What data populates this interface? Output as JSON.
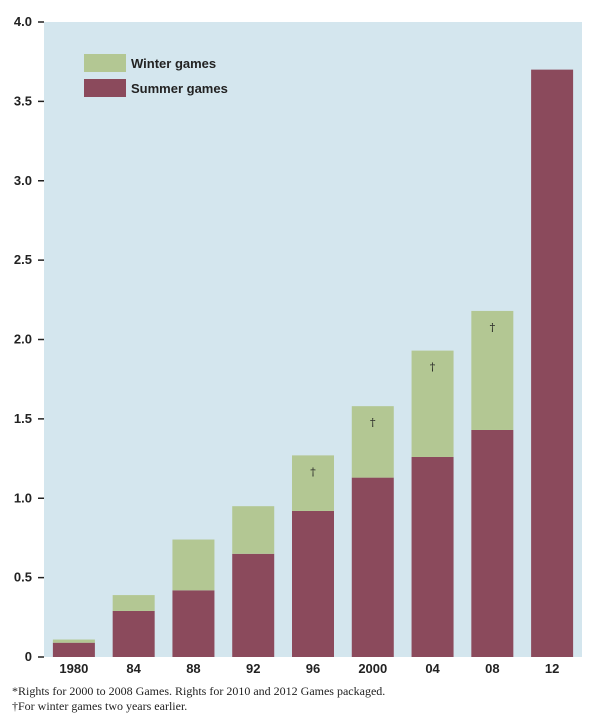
{
  "chart_data": {
    "type": "bar",
    "stacked": true,
    "categories": [
      "1980",
      "84",
      "88",
      "92",
      "96",
      "2000",
      "04",
      "08",
      "12"
    ],
    "series": [
      {
        "name": "Summer games",
        "color": "#8b4a5c",
        "values": [
          0.09,
          0.29,
          0.42,
          0.65,
          0.92,
          1.13,
          1.26,
          1.43,
          3.7
        ]
      },
      {
        "name": "Winter games",
        "color": "#b3c793",
        "values": [
          0.02,
          0.1,
          0.32,
          0.3,
          0.35,
          0.45,
          0.67,
          0.75,
          0
        ]
      }
    ],
    "yticks": [
      "0",
      "0.5",
      "1.0",
      "1.5",
      "2.0",
      "2.5",
      "3.0",
      "3.5",
      "4.0"
    ],
    "ylim": [
      0,
      4.0
    ],
    "grid": false,
    "legend_position": "top-left",
    "plot_background": "#d4e6ee",
    "annotations": [
      {
        "category": "96",
        "text": "†"
      },
      {
        "category": "2000",
        "text": "†"
      },
      {
        "category": "04",
        "text": "†"
      },
      {
        "category": "08",
        "text": "†"
      }
    ]
  },
  "legend": [
    {
      "label": "Winter games",
      "color": "#b3c793"
    },
    {
      "label": "Summer games",
      "color": "#8b4a5c"
    }
  ],
  "footnotes": {
    "rights": "*Rights for 2000 to 2008 Games. Rights for 2010 and 2012 Games packaged.",
    "winter": "†For winter games two years earlier."
  }
}
